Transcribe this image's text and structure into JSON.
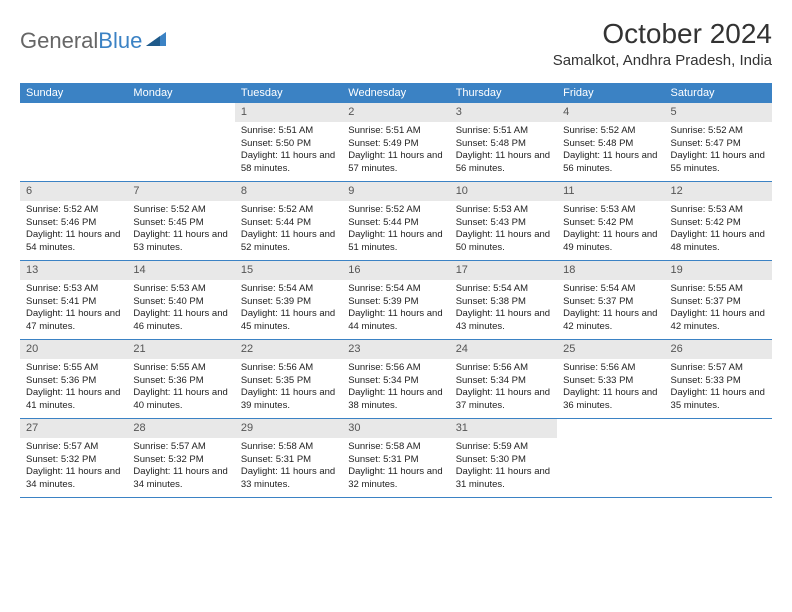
{
  "logo": {
    "text1": "General",
    "text2": "Blue"
  },
  "title": "October 2024",
  "location": "Samalkot, Andhra Pradesh, India",
  "colors": {
    "header_bg": "#3b82c4",
    "daynum_bg": "#e8e8e8",
    "page_bg": "#ffffff",
    "text": "#222222",
    "logo_gray": "#666666",
    "logo_blue": "#3b82c4"
  },
  "weekdays": [
    "Sunday",
    "Monday",
    "Tuesday",
    "Wednesday",
    "Thursday",
    "Friday",
    "Saturday"
  ],
  "weeks": [
    [
      {
        "n": "",
        "sr": "",
        "ss": "",
        "dl": ""
      },
      {
        "n": "",
        "sr": "",
        "ss": "",
        "dl": ""
      },
      {
        "n": "1",
        "sr": "Sunrise: 5:51 AM",
        "ss": "Sunset: 5:50 PM",
        "dl": "Daylight: 11 hours and 58 minutes."
      },
      {
        "n": "2",
        "sr": "Sunrise: 5:51 AM",
        "ss": "Sunset: 5:49 PM",
        "dl": "Daylight: 11 hours and 57 minutes."
      },
      {
        "n": "3",
        "sr": "Sunrise: 5:51 AM",
        "ss": "Sunset: 5:48 PM",
        "dl": "Daylight: 11 hours and 56 minutes."
      },
      {
        "n": "4",
        "sr": "Sunrise: 5:52 AM",
        "ss": "Sunset: 5:48 PM",
        "dl": "Daylight: 11 hours and 56 minutes."
      },
      {
        "n": "5",
        "sr": "Sunrise: 5:52 AM",
        "ss": "Sunset: 5:47 PM",
        "dl": "Daylight: 11 hours and 55 minutes."
      }
    ],
    [
      {
        "n": "6",
        "sr": "Sunrise: 5:52 AM",
        "ss": "Sunset: 5:46 PM",
        "dl": "Daylight: 11 hours and 54 minutes."
      },
      {
        "n": "7",
        "sr": "Sunrise: 5:52 AM",
        "ss": "Sunset: 5:45 PM",
        "dl": "Daylight: 11 hours and 53 minutes."
      },
      {
        "n": "8",
        "sr": "Sunrise: 5:52 AM",
        "ss": "Sunset: 5:44 PM",
        "dl": "Daylight: 11 hours and 52 minutes."
      },
      {
        "n": "9",
        "sr": "Sunrise: 5:52 AM",
        "ss": "Sunset: 5:44 PM",
        "dl": "Daylight: 11 hours and 51 minutes."
      },
      {
        "n": "10",
        "sr": "Sunrise: 5:53 AM",
        "ss": "Sunset: 5:43 PM",
        "dl": "Daylight: 11 hours and 50 minutes."
      },
      {
        "n": "11",
        "sr": "Sunrise: 5:53 AM",
        "ss": "Sunset: 5:42 PM",
        "dl": "Daylight: 11 hours and 49 minutes."
      },
      {
        "n": "12",
        "sr": "Sunrise: 5:53 AM",
        "ss": "Sunset: 5:42 PM",
        "dl": "Daylight: 11 hours and 48 minutes."
      }
    ],
    [
      {
        "n": "13",
        "sr": "Sunrise: 5:53 AM",
        "ss": "Sunset: 5:41 PM",
        "dl": "Daylight: 11 hours and 47 minutes."
      },
      {
        "n": "14",
        "sr": "Sunrise: 5:53 AM",
        "ss": "Sunset: 5:40 PM",
        "dl": "Daylight: 11 hours and 46 minutes."
      },
      {
        "n": "15",
        "sr": "Sunrise: 5:54 AM",
        "ss": "Sunset: 5:39 PM",
        "dl": "Daylight: 11 hours and 45 minutes."
      },
      {
        "n": "16",
        "sr": "Sunrise: 5:54 AM",
        "ss": "Sunset: 5:39 PM",
        "dl": "Daylight: 11 hours and 44 minutes."
      },
      {
        "n": "17",
        "sr": "Sunrise: 5:54 AM",
        "ss": "Sunset: 5:38 PM",
        "dl": "Daylight: 11 hours and 43 minutes."
      },
      {
        "n": "18",
        "sr": "Sunrise: 5:54 AM",
        "ss": "Sunset: 5:37 PM",
        "dl": "Daylight: 11 hours and 42 minutes."
      },
      {
        "n": "19",
        "sr": "Sunrise: 5:55 AM",
        "ss": "Sunset: 5:37 PM",
        "dl": "Daylight: 11 hours and 42 minutes."
      }
    ],
    [
      {
        "n": "20",
        "sr": "Sunrise: 5:55 AM",
        "ss": "Sunset: 5:36 PM",
        "dl": "Daylight: 11 hours and 41 minutes."
      },
      {
        "n": "21",
        "sr": "Sunrise: 5:55 AM",
        "ss": "Sunset: 5:36 PM",
        "dl": "Daylight: 11 hours and 40 minutes."
      },
      {
        "n": "22",
        "sr": "Sunrise: 5:56 AM",
        "ss": "Sunset: 5:35 PM",
        "dl": "Daylight: 11 hours and 39 minutes."
      },
      {
        "n": "23",
        "sr": "Sunrise: 5:56 AM",
        "ss": "Sunset: 5:34 PM",
        "dl": "Daylight: 11 hours and 38 minutes."
      },
      {
        "n": "24",
        "sr": "Sunrise: 5:56 AM",
        "ss": "Sunset: 5:34 PM",
        "dl": "Daylight: 11 hours and 37 minutes."
      },
      {
        "n": "25",
        "sr": "Sunrise: 5:56 AM",
        "ss": "Sunset: 5:33 PM",
        "dl": "Daylight: 11 hours and 36 minutes."
      },
      {
        "n": "26",
        "sr": "Sunrise: 5:57 AM",
        "ss": "Sunset: 5:33 PM",
        "dl": "Daylight: 11 hours and 35 minutes."
      }
    ],
    [
      {
        "n": "27",
        "sr": "Sunrise: 5:57 AM",
        "ss": "Sunset: 5:32 PM",
        "dl": "Daylight: 11 hours and 34 minutes."
      },
      {
        "n": "28",
        "sr": "Sunrise: 5:57 AM",
        "ss": "Sunset: 5:32 PM",
        "dl": "Daylight: 11 hours and 34 minutes."
      },
      {
        "n": "29",
        "sr": "Sunrise: 5:58 AM",
        "ss": "Sunset: 5:31 PM",
        "dl": "Daylight: 11 hours and 33 minutes."
      },
      {
        "n": "30",
        "sr": "Sunrise: 5:58 AM",
        "ss": "Sunset: 5:31 PM",
        "dl": "Daylight: 11 hours and 32 minutes."
      },
      {
        "n": "31",
        "sr": "Sunrise: 5:59 AM",
        "ss": "Sunset: 5:30 PM",
        "dl": "Daylight: 11 hours and 31 minutes."
      },
      {
        "n": "",
        "sr": "",
        "ss": "",
        "dl": ""
      },
      {
        "n": "",
        "sr": "",
        "ss": "",
        "dl": ""
      }
    ]
  ]
}
